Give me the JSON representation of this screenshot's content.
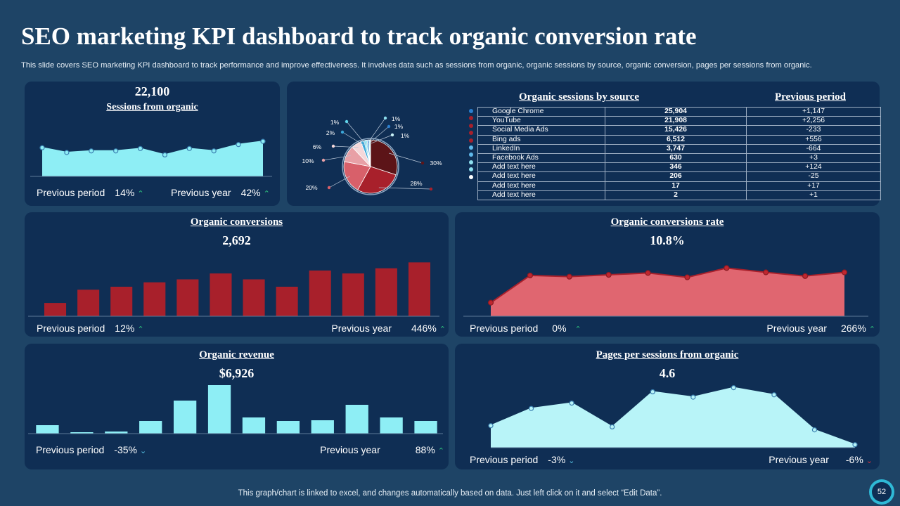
{
  "title": "SEO marketing KPI dashboard to track organic conversion rate",
  "subtitle": "This slide covers SEO marketing KPI dashboard to track performance and improve effectiveness. It involves data such as sessions from organic, organic sessions by source, organic conversion, pages per sessions from organic.",
  "footer_note": "This graph/chart is linked to excel,  and changes automatically based on data. Just left click on it and select “Edit Data”.",
  "page_number": "52",
  "colors": {
    "background": "#1e4466",
    "panel": "#0f2e54",
    "cyan": "#8eeef5",
    "red": "#a8202b",
    "salmon": "#e06670",
    "green": "#2ec27e"
  },
  "chart_data": [
    {
      "id": "sessions",
      "type": "area",
      "title": "Sessions from organic",
      "headline": "22,100",
      "values": [
        36,
        30,
        32,
        32,
        35,
        27,
        35,
        32,
        40,
        44
      ],
      "ylim": [
        0,
        60
      ],
      "previous_period_label": "Previous period",
      "previous_period_value": "14%",
      "previous_period_trend": "up",
      "previous_year_label": "Previous year",
      "previous_year_value": "42%",
      "previous_year_trend": "up"
    },
    {
      "id": "sources",
      "type": "pie",
      "title": "Organic  sessions by source",
      "previous_title": "Previous period",
      "slice_labels": [
        "30%",
        "28%",
        "20%",
        "10%",
        "6%",
        "2%",
        "1%",
        "1%",
        "1%",
        "1%"
      ],
      "slices": [
        30,
        28,
        20,
        10,
        6,
        2,
        1,
        1,
        1,
        1
      ],
      "slice_colors": [
        "#5c1418",
        "#a8202b",
        "#d8606a",
        "#e8a0a6",
        "#f5d8da",
        "#3aa6d8",
        "#5fd5ea",
        "#8ee0ef",
        "#2a7fd0",
        "#c9f2f7"
      ],
      "rows": [
        {
          "name": "Google Chrome",
          "sessions": "25,904",
          "change": "+1,147"
        },
        {
          "name": "YouTube",
          "sessions": "21,908",
          "change": "+2,256"
        },
        {
          "name": "Social Media Ads",
          "sessions": "15,426",
          "change": "-233"
        },
        {
          "name": "Bing ads",
          "sessions": "6,512",
          "change": "+556"
        },
        {
          "name": "LinkedIn",
          "sessions": "3,747",
          "change": "-664"
        },
        {
          "name": "Facebook Ads",
          "sessions": "630",
          "change": "+3"
        },
        {
          "name": "Add text here",
          "sessions": "346",
          "change": "+124"
        },
        {
          "name": "Add text here",
          "sessions": "206",
          "change": "-25"
        },
        {
          "name": "Add text here",
          "sessions": "17",
          "change": "+17"
        },
        {
          "name": "Add text here",
          "sessions": "2",
          "change": "+1"
        }
      ],
      "row_dot_colors": [
        "#2a7fd0",
        "#a8202b",
        "#a8202b",
        "#a8202b",
        "#a8202b",
        "#5fb8ea",
        "#5fb8ea",
        "#8ee0ef",
        "#8ee0ef",
        "#ffffff"
      ]
    },
    {
      "id": "conversions",
      "type": "bar",
      "title": "Organic  conversions",
      "headline": "2,692",
      "values": [
        18,
        36,
        40,
        46,
        50,
        58,
        50,
        40,
        62,
        58,
        65,
        73
      ],
      "ylim": [
        0,
        80
      ],
      "previous_period_label": "Previous period",
      "previous_period_value": "12%",
      "previous_period_trend": "up",
      "previous_year_label": "Previous year",
      "previous_year_value": "446%",
      "previous_year_trend": "up"
    },
    {
      "id": "conv_rate",
      "type": "area",
      "title": "Organic  conversions rate",
      "headline": "10.8%",
      "values": [
        22,
        66,
        64,
        67,
        70,
        63,
        78,
        71,
        65,
        71
      ],
      "ylim": [
        0,
        100
      ],
      "previous_period_label": "Previous period",
      "previous_period_value": "0%",
      "previous_period_trend": "up",
      "previous_year_label": "Previous year",
      "previous_year_value": "266%",
      "previous_year_trend": "up"
    },
    {
      "id": "revenue",
      "type": "bar",
      "title": "Organic  revenue",
      "headline": "$6,926",
      "values": [
        12,
        2,
        3,
        18,
        47,
        69,
        23,
        18,
        19,
        41,
        23,
        18
      ],
      "ylim": [
        0,
        70
      ],
      "previous_period_label": "Previous period",
      "previous_period_value": "-35%",
      "previous_period_trend": "down",
      "previous_year_label": "Previous year",
      "previous_year_value": "88%",
      "previous_year_trend": "up"
    },
    {
      "id": "pages",
      "type": "area",
      "title": "Pages per sessions from organic",
      "headline": "4.6",
      "values": [
        37,
        66,
        75,
        35,
        94,
        85,
        101,
        89,
        30,
        5
      ],
      "ylim": [
        0,
        110
      ],
      "previous_period_label": "Previous period",
      "previous_period_value": "-3%",
      "previous_period_trend": "down",
      "previous_year_label": "Previous year",
      "previous_year_value": "-6%",
      "previous_year_trend": "down"
    }
  ]
}
